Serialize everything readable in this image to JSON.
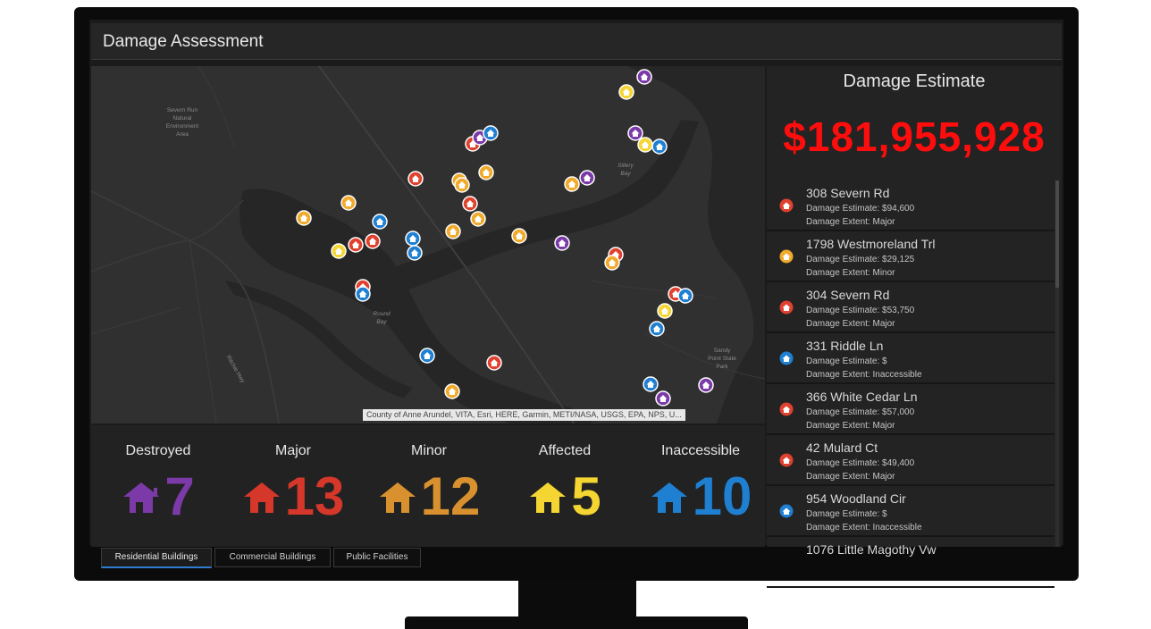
{
  "app": {
    "title": "Damage Assessment"
  },
  "map": {
    "attribution": "County of Anne Arundel, VITA, Esri, HERE, Garmin, METI/NASA, USGS, EPA, NPS, U...",
    "labels": [
      "Severn Run",
      "Natural",
      "Environment",
      "Area",
      "Round",
      "Bay",
      "Sillery",
      "Bay",
      "Sandy",
      "Point State",
      "Park",
      "Ritchie Hwy"
    ]
  },
  "stats": [
    {
      "label": "Destroyed",
      "value": "7",
      "color": "#7b3aa8"
    },
    {
      "label": "Major",
      "value": "13",
      "color": "#d5372a"
    },
    {
      "label": "Minor",
      "value": "12",
      "color": "#d8912e"
    },
    {
      "label": "Affected",
      "value": "5",
      "color": "#f4d531"
    },
    {
      "label": "Inaccessible",
      "value": "10",
      "color": "#1f7fd1"
    }
  ],
  "estimate": {
    "title": "Damage Estimate",
    "value": "$181,955,928"
  },
  "list": [
    {
      "address": "308 Severn Rd",
      "estimate": "Damage Estimate: $94,600",
      "extent": "Damage Extent: Major",
      "category": "major"
    },
    {
      "address": "1798 Westmoreland Trl",
      "estimate": "Damage Estimate: $29,125",
      "extent": "Damage Extent: Minor",
      "category": "minor"
    },
    {
      "address": "304 Severn Rd",
      "estimate": "Damage Estimate: $53,750",
      "extent": "Damage Extent: Major",
      "category": "major"
    },
    {
      "address": "331 Riddle Ln",
      "estimate": "Damage Estimate: $",
      "extent": "Damage Extent: Inaccessible",
      "category": "inaccessible"
    },
    {
      "address": "366 White Cedar Ln",
      "estimate": "Damage Estimate: $57,000",
      "extent": "Damage Extent: Major",
      "category": "major"
    },
    {
      "address": "42 Mulard Ct",
      "estimate": "Damage Estimate: $49,400",
      "extent": "Damage Extent: Major",
      "category": "major"
    },
    {
      "address": "954 Woodland Cir",
      "estimate": "Damage Estimate: $",
      "extent": "Damage Extent: Inaccessible",
      "category": "inaccessible"
    },
    {
      "address": "1076 Little Magothy Vw",
      "estimate": "",
      "extent": "",
      "category": ""
    }
  ],
  "tabs": [
    {
      "label": "Residential Buildings",
      "active": true
    },
    {
      "label": "Commercial Buildings",
      "active": false
    },
    {
      "label": "Public Facilities",
      "active": false
    }
  ],
  "colors": {
    "destroyed": "#7b3aa8",
    "major": "#e0412e",
    "minor": "#f0a92a",
    "affected": "#f4d531",
    "inaccessible": "#1f7fd1",
    "estimate": "#ff0d0d"
  }
}
